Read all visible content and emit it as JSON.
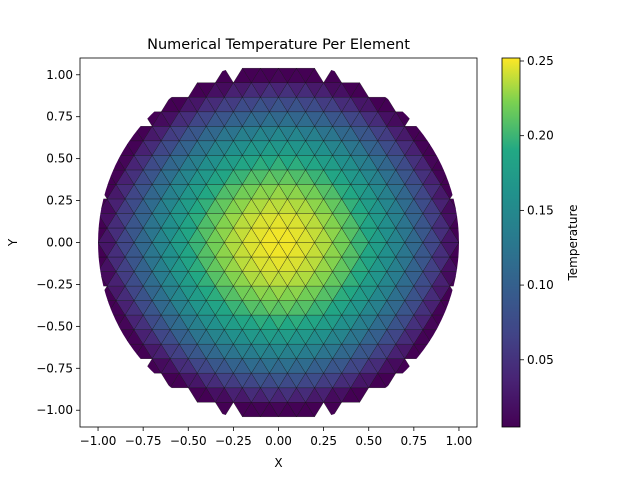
{
  "chart_data": {
    "type": "heatmap",
    "title": "Numerical Temperature Per Element",
    "xlabel": "X",
    "ylabel": "Y",
    "xlim": [
      -1.1,
      1.1
    ],
    "ylim": [
      -1.1,
      1.1
    ],
    "x_ticks": [
      "−1.00",
      "−0.75",
      "−0.50",
      "−0.25",
      "0.00",
      "0.25",
      "0.50",
      "0.75",
      "1.00"
    ],
    "y_ticks": [
      "1.00",
      "0.75",
      "0.50",
      "0.25",
      "0.00",
      "−0.25",
      "−0.50",
      "−0.75",
      "−1.00"
    ],
    "x_tick_values": [
      -1.0,
      -0.75,
      -0.5,
      -0.25,
      0.0,
      0.25,
      0.5,
      0.75,
      1.0
    ],
    "y_tick_values": [
      1.0,
      0.75,
      0.5,
      0.25,
      0.0,
      -0.25,
      -0.5,
      -0.75,
      -1.0
    ],
    "domain": "unit disk centered at (0, 0), radius 1.0, triangular mesh",
    "field": {
      "max": 0.25,
      "min": 0.005,
      "peak_at": [
        0.0,
        0.0
      ]
    },
    "colorbar": {
      "label": "Temperature",
      "range": [
        0.005,
        0.252
      ],
      "ticks": [
        "0.05",
        "0.10",
        "0.15",
        "0.20",
        "0.25"
      ],
      "tick_values": [
        0.05,
        0.1,
        0.15,
        0.2,
        0.25
      ],
      "colormap": "viridis"
    },
    "grid": false,
    "grid_spacing": 0.1
  }
}
